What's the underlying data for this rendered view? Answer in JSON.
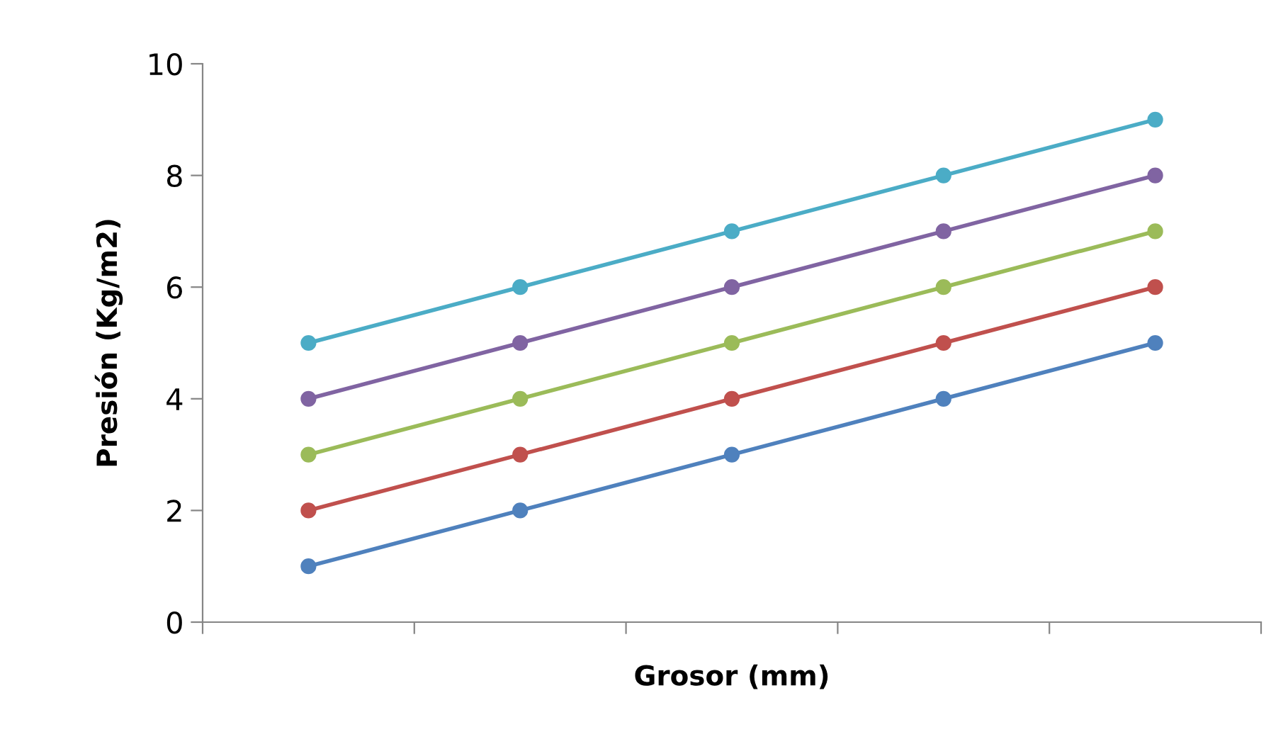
{
  "chart_data": {
    "type": "line",
    "xlabel": "Grosor (mm)",
    "ylabel": "Presión (Kg/m2)",
    "categories": [
      null,
      null,
      null,
      null,
      null
    ],
    "series": [
      {
        "color": "#4f81bd",
        "values": [
          1,
          2,
          3,
          4,
          5
        ]
      },
      {
        "color": "#c0504d",
        "values": [
          2,
          3,
          4,
          5,
          6
        ]
      },
      {
        "color": "#9bbb59",
        "values": [
          3,
          4,
          5,
          6,
          7
        ]
      },
      {
        "color": "#8064a2",
        "values": [
          4,
          5,
          6,
          7,
          8
        ]
      },
      {
        "color": "#4bacc6",
        "values": [
          5,
          6,
          7,
          8,
          9
        ]
      }
    ],
    "ylim": [
      0,
      10
    ],
    "yticks": [
      0,
      2,
      4,
      6,
      8,
      10
    ],
    "grid": false,
    "legend": false,
    "marker": "circle",
    "line_style": "solid"
  }
}
